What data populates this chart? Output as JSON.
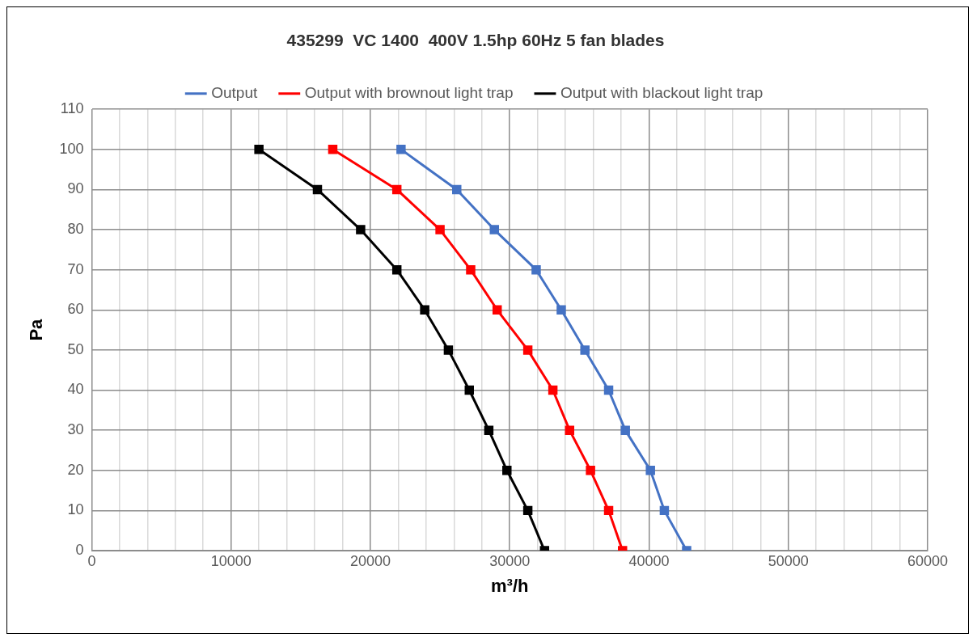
{
  "chart_data": {
    "type": "line",
    "title": "435299  VC 1400  400V 1.5hp 60Hz 5 fan blades",
    "xlabel": "m³/h",
    "ylabel": "Pa",
    "xlim": [
      0,
      60000
    ],
    "ylim": [
      0,
      110
    ],
    "xticks": [
      0,
      {
        "value": 2000,
        "label": null
      },
      {
        "value": 4000,
        "label": null
      },
      {
        "value": 6000,
        "label": null
      },
      {
        "value": 8000,
        "label": null
      },
      10000,
      {
        "value": 12000,
        "label": null
      },
      {
        "value": 14000,
        "label": null
      },
      {
        "value": 16000,
        "label": null
      },
      {
        "value": 18000,
        "label": null
      },
      20000,
      {
        "value": 22000,
        "label": null
      },
      {
        "value": 24000,
        "label": null
      },
      {
        "value": 26000,
        "label": null
      },
      {
        "value": 28000,
        "label": null
      },
      30000,
      {
        "value": 32000,
        "label": null
      },
      {
        "value": 34000,
        "label": null
      },
      {
        "value": 36000,
        "label": null
      },
      {
        "value": 38000,
        "label": null
      },
      40000,
      {
        "value": 42000,
        "label": null
      },
      {
        "value": 44000,
        "label": null
      },
      {
        "value": 46000,
        "label": null
      },
      {
        "value": 48000,
        "label": null
      },
      50000,
      {
        "value": 52000,
        "label": null
      },
      {
        "value": 54000,
        "label": null
      },
      {
        "value": 56000,
        "label": null
      },
      {
        "value": 58000,
        "label": null
      },
      60000
    ],
    "yticks": [
      0,
      10,
      20,
      30,
      40,
      50,
      60,
      70,
      80,
      90,
      100,
      110
    ],
    "grid": true,
    "legend": "top",
    "marker": "square",
    "line_style": "solid",
    "series": [
      {
        "name": "Output",
        "color": "#4472c4",
        "x": [
          22200,
          26200,
          28900,
          31900,
          33700,
          35400,
          37100,
          38300,
          40100,
          41100,
          42700
        ],
        "values": [
          100,
          90,
          80,
          70,
          60,
          50,
          40,
          30,
          20,
          10,
          0
        ]
      },
      {
        "name": "Output with brownout light trap",
        "color": "#ff0000",
        "x": [
          17300,
          21900,
          25000,
          27200,
          29100,
          31300,
          33100,
          34300,
          35800,
          37100,
          38100
        ],
        "values": [
          100,
          90,
          80,
          70,
          60,
          50,
          40,
          30,
          20,
          10,
          0
        ]
      },
      {
        "name": "Output with blackout light trap",
        "color": "#000000",
        "x": [
          12000,
          16200,
          19300,
          21900,
          23900,
          25600,
          27100,
          28500,
          29800,
          31300,
          32500
        ],
        "values": [
          100,
          90,
          80,
          70,
          60,
          50,
          40,
          30,
          20,
          10,
          0
        ]
      }
    ]
  }
}
